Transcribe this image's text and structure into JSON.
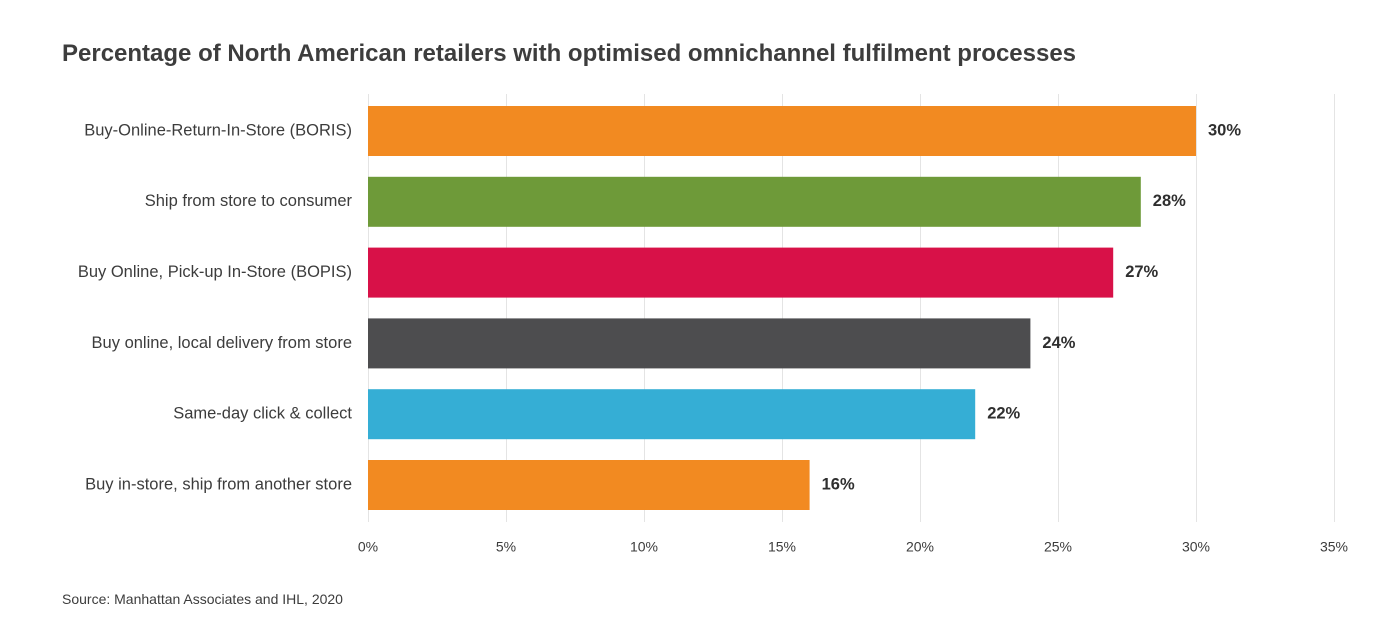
{
  "chart_data": {
    "type": "bar",
    "orientation": "horizontal",
    "title": "Percentage of North American retailers with optimised omnichannel fulfilment processes",
    "categories": [
      "Buy-Online-Return-In-Store (BORIS)",
      "Ship from store to consumer",
      "Buy Online, Pick-up In-Store (BOPIS)",
      "Buy online, local delivery from store",
      "Same-day click & collect",
      "Buy in-store, ship from another store"
    ],
    "values": [
      30,
      28,
      27,
      24,
      22,
      16
    ],
    "value_labels": [
      "30%",
      "28%",
      "27%",
      "24%",
      "22%",
      "16%"
    ],
    "bar_colors": [
      "#f28a21",
      "#6e9a39",
      "#d81148",
      "#4d4d4f",
      "#35aed5",
      "#f28a21"
    ],
    "x_ticks": [
      0,
      5,
      10,
      15,
      20,
      25,
      30,
      35
    ],
    "x_tick_labels": [
      "0%",
      "5%",
      "10%",
      "15%",
      "20%",
      "25%",
      "30%",
      "35%"
    ],
    "xlim": [
      0,
      35
    ],
    "xlabel": "",
    "ylabel": "",
    "grid": true,
    "legend": "none",
    "gridline_color": "#e4e4e4"
  },
  "source_note": "Source: Manhattan Associates and IHL, 2020"
}
